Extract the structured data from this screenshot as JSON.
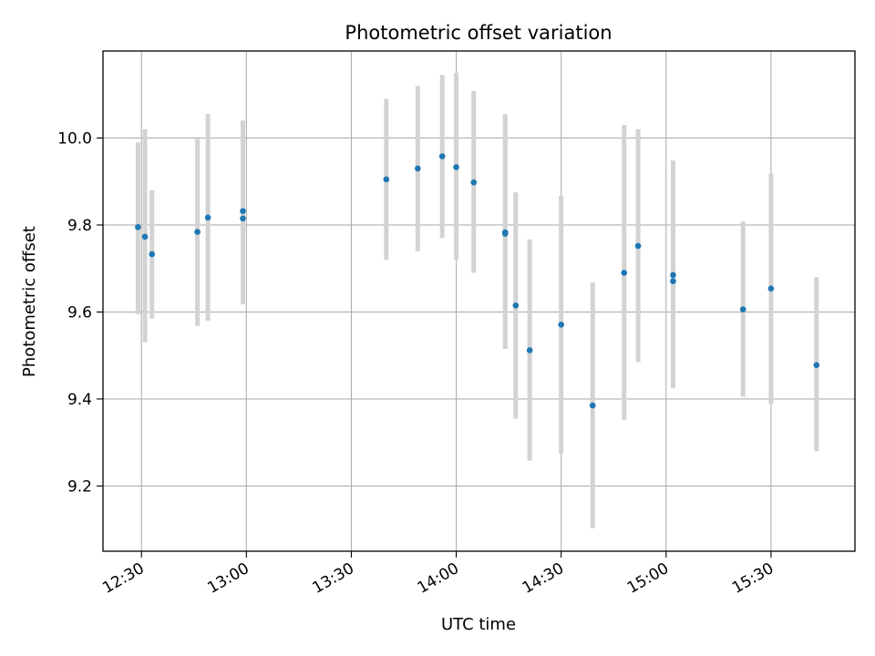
{
  "chart_data": {
    "type": "scatter",
    "title": "Photometric offset variation",
    "xlabel": "UTC time",
    "ylabel": "Photometric offset",
    "x_ticks": [
      "12:30",
      "13:00",
      "13:30",
      "14:00",
      "14:30",
      "15:00",
      "15:30"
    ],
    "y_ticks": [
      "9.2",
      "9.4",
      "9.6",
      "9.8",
      "10.0"
    ],
    "xlim": [
      "12:19",
      "15:54"
    ],
    "ylim": [
      9.05,
      10.2
    ],
    "grid": true,
    "marker_color": "#1f77b4",
    "errorbar_color": "#d3d3d3",
    "points": [
      {
        "x": "12:29",
        "y": 9.795,
        "yerr_low": 9.595,
        "yerr_high": 9.99
      },
      {
        "x": "12:31",
        "y": 9.773,
        "yerr_low": 9.53,
        "yerr_high": 10.02
      },
      {
        "x": "12:33",
        "y": 9.733,
        "yerr_low": 9.585,
        "yerr_high": 9.88
      },
      {
        "x": "12:46",
        "y": 9.784,
        "yerr_low": 9.568,
        "yerr_high": 9.998
      },
      {
        "x": "12:49",
        "y": 9.817,
        "yerr_low": 9.58,
        "yerr_high": 10.055
      },
      {
        "x": "12:59",
        "y": 9.832,
        "yerr_low": 9.618,
        "yerr_high": 10.04
      },
      {
        "x": "12:59",
        "y": 9.815,
        "yerr_low": 9.618,
        "yerr_high": 10.01
      },
      {
        "x": "13:40",
        "y": 9.905,
        "yerr_low": 9.72,
        "yerr_high": 10.09
      },
      {
        "x": "13:49",
        "y": 9.93,
        "yerr_low": 9.74,
        "yerr_high": 10.12
      },
      {
        "x": "13:56",
        "y": 9.958,
        "yerr_low": 9.77,
        "yerr_high": 10.145
      },
      {
        "x": "14:00",
        "y": 9.933,
        "yerr_low": 9.72,
        "yerr_high": 10.15
      },
      {
        "x": "14:05",
        "y": 9.898,
        "yerr_low": 9.69,
        "yerr_high": 10.108
      },
      {
        "x": "14:14",
        "y": 9.783,
        "yerr_low": 9.515,
        "yerr_high": 10.055
      },
      {
        "x": "14:14",
        "y": 9.78,
        "yerr_low": 9.515,
        "yerr_high": 10.045
      },
      {
        "x": "14:17",
        "y": 9.615,
        "yerr_low": 9.355,
        "yerr_high": 9.875
      },
      {
        "x": "14:21",
        "y": 9.512,
        "yerr_low": 9.258,
        "yerr_high": 9.767
      },
      {
        "x": "14:30",
        "y": 9.571,
        "yerr_low": 9.275,
        "yerr_high": 9.867
      },
      {
        "x": "14:39",
        "y": 9.385,
        "yerr_low": 9.103,
        "yerr_high": 9.668
      },
      {
        "x": "14:48",
        "y": 9.69,
        "yerr_low": 9.352,
        "yerr_high": 10.03
      },
      {
        "x": "14:52",
        "y": 9.752,
        "yerr_low": 9.485,
        "yerr_high": 10.02
      },
      {
        "x": "15:02",
        "y": 9.685,
        "yerr_low": 9.425,
        "yerr_high": 9.948
      },
      {
        "x": "15:02",
        "y": 9.671,
        "yerr_low": 9.428,
        "yerr_high": 9.913
      },
      {
        "x": "15:22",
        "y": 9.606,
        "yerr_low": 9.405,
        "yerr_high": 9.808
      },
      {
        "x": "15:30",
        "y": 9.654,
        "yerr_low": 9.388,
        "yerr_high": 9.918
      },
      {
        "x": "15:43",
        "y": 9.478,
        "yerr_low": 9.28,
        "yerr_high": 9.68
      }
    ]
  }
}
